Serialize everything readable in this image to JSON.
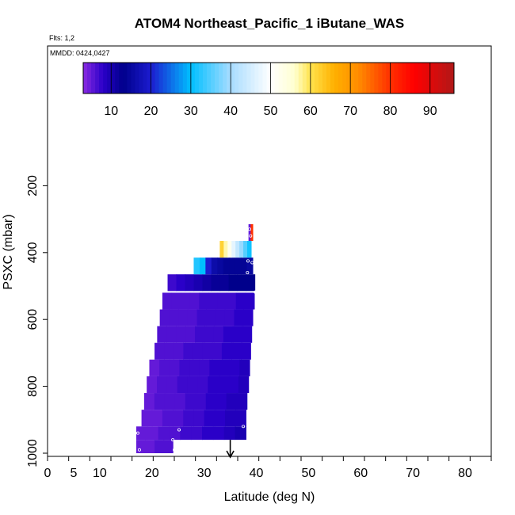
{
  "chart_data": {
    "type": "heatmap",
    "title": "ATOM4 Northeast_Pacific_1 iButane_WAS",
    "flights_text": "Flts: 1,2",
    "mmdd_text": "MMDD: 0424,0427",
    "xlabel": "Latitude (deg N)",
    "ylabel": "PSXC (mbar)",
    "xlim": [
      0,
      85
    ],
    "ylim": [
      1000,
      0
    ],
    "x_ticks": [
      0,
      5,
      10,
      20,
      30,
      40,
      50,
      60,
      70,
      80
    ],
    "y_ticks": [
      200,
      400,
      600,
      800,
      1000
    ],
    "colorbar": {
      "range": [
        3,
        96
      ],
      "ticks": [
        10,
        20,
        30,
        40,
        50,
        60,
        70,
        80,
        90
      ],
      "stops": [
        {
          "v": 3,
          "color": "#8a2be2"
        },
        {
          "v": 8,
          "color": "#2a00c8"
        },
        {
          "v": 13,
          "color": "#00008b"
        },
        {
          "v": 20,
          "color": "#1c1cd0"
        },
        {
          "v": 30,
          "color": "#00bfff"
        },
        {
          "v": 40,
          "color": "#a8dcff"
        },
        {
          "v": 50,
          "color": "#ffffff"
        },
        {
          "v": 56,
          "color": "#ffffd0"
        },
        {
          "v": 60,
          "color": "#ffe34d"
        },
        {
          "v": 66,
          "color": "#ffb000"
        },
        {
          "v": 72,
          "color": "#ff8c00"
        },
        {
          "v": 80,
          "color": "#ff3000"
        },
        {
          "v": 86,
          "color": "#ff0000"
        },
        {
          "v": 96,
          "color": "#b01818"
        }
      ]
    },
    "layers": [
      {
        "p_top": 960,
        "p_bot": 1000,
        "lat_min": 17,
        "lat_max": 24,
        "values": [
          5,
          5,
          6,
          6
        ]
      },
      {
        "p_top": 920,
        "p_bot": 960,
        "lat_min": 17,
        "lat_max": 38,
        "values": [
          5,
          5,
          6,
          6,
          7,
          7,
          8,
          8,
          9,
          10
        ]
      },
      {
        "p_top": 870,
        "p_bot": 920,
        "lat_min": 18,
        "lat_max": 38,
        "values": [
          5,
          5,
          6,
          6,
          7,
          7,
          8,
          8,
          9,
          9
        ]
      },
      {
        "p_top": 820,
        "p_bot": 870,
        "lat_min": 18.5,
        "lat_max": 38.2,
        "values": [
          5,
          6,
          6,
          6,
          7,
          7,
          8,
          8,
          9,
          9
        ]
      },
      {
        "p_top": 770,
        "p_bot": 820,
        "lat_min": 19,
        "lat_max": 38.5,
        "values": [
          5,
          6,
          6,
          7,
          7,
          7,
          8,
          8,
          8,
          9
        ]
      },
      {
        "p_top": 720,
        "p_bot": 770,
        "lat_min": 19.5,
        "lat_max": 38.7,
        "values": [
          5,
          6,
          6,
          7,
          7,
          7,
          8,
          8,
          8,
          9
        ]
      },
      {
        "p_top": 670,
        "p_bot": 720,
        "lat_min": 20.5,
        "lat_max": 38.9,
        "values": [
          6,
          6,
          6,
          7,
          7,
          7,
          7,
          8,
          8,
          8
        ]
      },
      {
        "p_top": 620,
        "p_bot": 670,
        "lat_min": 21,
        "lat_max": 39.1,
        "values": [
          6,
          6,
          6,
          6,
          7,
          7,
          7,
          8,
          8,
          8
        ]
      },
      {
        "p_top": 570,
        "p_bot": 620,
        "lat_min": 21.5,
        "lat_max": 39.3,
        "values": [
          6,
          6,
          6,
          6,
          7,
          7,
          7,
          7,
          8,
          8
        ]
      },
      {
        "p_top": 520,
        "p_bot": 570,
        "lat_min": 22,
        "lat_max": 39.6,
        "values": [
          6,
          6,
          6,
          6,
          7,
          7,
          7,
          7,
          8,
          8
        ]
      },
      {
        "p_top": 465,
        "p_bot": 515,
        "lat_min": 23,
        "lat_max": 39.7,
        "values": [
          7,
          8,
          9,
          10,
          11,
          12,
          12,
          13,
          13,
          13
        ]
      },
      {
        "p_top": 415,
        "p_bot": 465,
        "lat_min": 28,
        "lat_max": 39.3,
        "values": [
          32,
          30,
          20,
          16,
          15,
          14,
          14,
          14,
          14,
          15
        ]
      },
      {
        "p_top": 365,
        "p_bot": 415,
        "lat_min": 33,
        "lat_max": 39,
        "values": [
          62,
          57,
          52,
          47,
          43,
          39,
          35,
          31
        ]
      },
      {
        "p_top": 315,
        "p_bot": 365,
        "lat_min": 38.5,
        "lat_max": 39.3,
        "values": [
          5,
          80
        ]
      }
    ],
    "sample_points": [
      {
        "lat": 17.6,
        "p": 990
      },
      {
        "lat": 17.3,
        "p": 940
      },
      {
        "lat": 24.3,
        "p": 990
      },
      {
        "lat": 24.0,
        "p": 960
      },
      {
        "lat": 25.2,
        "p": 930
      },
      {
        "lat": 37.5,
        "p": 920
      },
      {
        "lat": 38.7,
        "p": 330
      },
      {
        "lat": 38.9,
        "p": 350
      },
      {
        "lat": 38.4,
        "p": 425
      },
      {
        "lat": 39.2,
        "p": 430
      },
      {
        "lat": 38.3,
        "p": 460
      },
      {
        "lat": 39.8,
        "p": 518
      }
    ],
    "arrow_lat": 35
  }
}
